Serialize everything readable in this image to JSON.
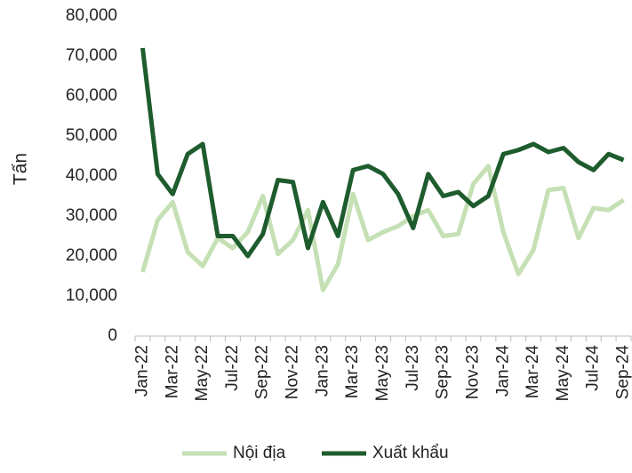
{
  "chart_data": {
    "type": "line",
    "ylabel": "Tấn",
    "categories": [
      "Jan-22",
      null,
      "Mar-22",
      null,
      "May-22",
      null,
      "Jul-22",
      null,
      "Sep-22",
      null,
      "Nov-22",
      null,
      "Jan-23",
      null,
      "Mar-23",
      null,
      "May-23",
      null,
      "Jul-23",
      null,
      "Sep-23",
      null,
      "Nov-23",
      null,
      "Jan-24",
      null,
      "Mar-24",
      null,
      "May-24",
      null,
      "Jul-24",
      null,
      "Sep-24"
    ],
    "series": [
      {
        "name": "Nội địa",
        "color": "#c5e0b4",
        "values": [
          16000,
          29000,
          33500,
          21000,
          17500,
          24500,
          22000,
          26000,
          35000,
          20500,
          24000,
          31500,
          11500,
          18000,
          35500,
          24000,
          26000,
          27500,
          30000,
          31500,
          25000,
          25500,
          38000,
          42500,
          26000,
          15500,
          21500,
          36500,
          37000,
          24500,
          32000,
          31500,
          34000
        ]
      },
      {
        "name": "Xuất khẩu",
        "color": "#1e5c2e",
        "values": [
          72000,
          40500,
          35500,
          45500,
          48000,
          25000,
          25000,
          20000,
          25500,
          39000,
          38500,
          22000,
          33500,
          25000,
          41500,
          42500,
          40500,
          35500,
          27000,
          40500,
          35000,
          36000,
          32500,
          35000,
          45500,
          46500,
          48000,
          46000,
          47000,
          43500,
          41500,
          45500,
          44000
        ]
      }
    ],
    "ylim": [
      0,
      80000
    ],
    "yticks": [
      0,
      {
        "value": 10000,
        "label": "10,000"
      },
      {
        "value": 20000,
        "label": "20,000"
      },
      {
        "value": 30000,
        "label": "30,000"
      },
      {
        "value": 40000,
        "label": "40,000"
      },
      {
        "value": 50000,
        "label": "50,000"
      },
      {
        "value": 60000,
        "label": "60,000"
      },
      {
        "value": 70000,
        "label": "70,000"
      },
      {
        "value": 80000,
        "label": "80,000"
      }
    ],
    "legend": "bottom"
  }
}
